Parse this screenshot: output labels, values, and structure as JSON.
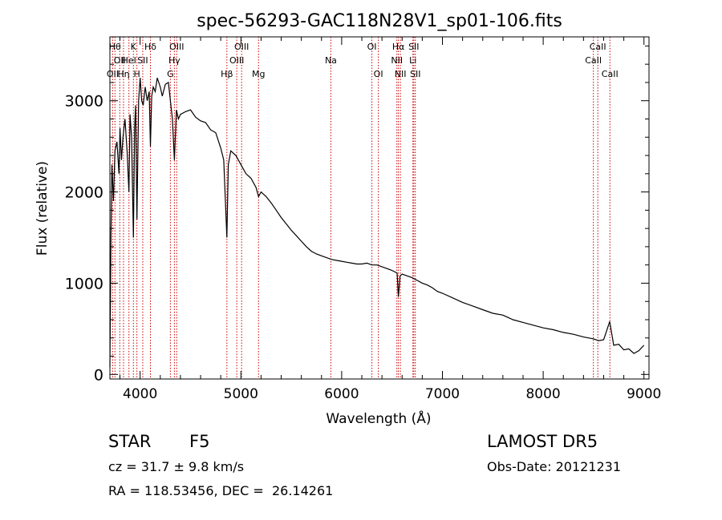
{
  "chart_data": {
    "type": "line",
    "title": "spec-56293-GAC118N28V1_sp01-106.fits",
    "xlabel": "Wavelength (Å)",
    "ylabel": "Flux (relative)",
    "xlim": [
      3700,
      9050
    ],
    "ylim": [
      -50,
      3700
    ],
    "x_ticks": [
      4000,
      5000,
      6000,
      7000,
      8000,
      9000
    ],
    "y_ticks": [
      0,
      1000,
      2000,
      3000
    ],
    "line_color": "#000000",
    "marker_color": "#cc0000",
    "series": [
      {
        "values": [
          [
            3700,
            80
          ],
          [
            3710,
            1500
          ],
          [
            3720,
            2300
          ],
          [
            3735,
            1900
          ],
          [
            3750,
            2450
          ],
          [
            3770,
            2550
          ],
          [
            3790,
            2200
          ],
          [
            3800,
            2700
          ],
          [
            3815,
            2350
          ],
          [
            3830,
            2600
          ],
          [
            3850,
            2800
          ],
          [
            3870,
            2450
          ],
          [
            3889,
            2000
          ],
          [
            3900,
            2850
          ],
          [
            3915,
            2600
          ],
          [
            3933,
            1500
          ],
          [
            3945,
            2700
          ],
          [
            3955,
            2950
          ],
          [
            3968,
            1700
          ],
          [
            3985,
            3000
          ],
          [
            4000,
            3250
          ],
          [
            4015,
            3000
          ],
          [
            4030,
            2950
          ],
          [
            4050,
            3150
          ],
          [
            4070,
            3000
          ],
          [
            4090,
            3100
          ],
          [
            4102,
            2500
          ],
          [
            4115,
            3050
          ],
          [
            4130,
            3150
          ],
          [
            4150,
            3100
          ],
          [
            4170,
            3250
          ],
          [
            4200,
            3150
          ],
          [
            4220,
            3050
          ],
          [
            4250,
            3180
          ],
          [
            4280,
            3200
          ],
          [
            4300,
            3000
          ],
          [
            4320,
            2800
          ],
          [
            4340,
            2350
          ],
          [
            4360,
            2900
          ],
          [
            4380,
            2800
          ],
          [
            4400,
            2850
          ],
          [
            4450,
            2880
          ],
          [
            4500,
            2900
          ],
          [
            4550,
            2820
          ],
          [
            4600,
            2780
          ],
          [
            4650,
            2760
          ],
          [
            4700,
            2680
          ],
          [
            4750,
            2650
          ],
          [
            4800,
            2480
          ],
          [
            4830,
            2350
          ],
          [
            4861,
            1500
          ],
          [
            4875,
            2300
          ],
          [
            4900,
            2450
          ],
          [
            4950,
            2400
          ],
          [
            5000,
            2300
          ],
          [
            5050,
            2200
          ],
          [
            5100,
            2150
          ],
          [
            5150,
            2050
          ],
          [
            5175,
            1950
          ],
          [
            5200,
            2000
          ],
          [
            5250,
            1950
          ],
          [
            5300,
            1880
          ],
          [
            5350,
            1800
          ],
          [
            5400,
            1720
          ],
          [
            5450,
            1650
          ],
          [
            5500,
            1580
          ],
          [
            5550,
            1520
          ],
          [
            5600,
            1460
          ],
          [
            5650,
            1400
          ],
          [
            5700,
            1350
          ],
          [
            5750,
            1320
          ],
          [
            5800,
            1300
          ],
          [
            5850,
            1280
          ],
          [
            5900,
            1260
          ],
          [
            5950,
            1250
          ],
          [
            6000,
            1240
          ],
          [
            6050,
            1230
          ],
          [
            6100,
            1220
          ],
          [
            6150,
            1210
          ],
          [
            6200,
            1210
          ],
          [
            6250,
            1220
          ],
          [
            6300,
            1200
          ],
          [
            6350,
            1200
          ],
          [
            6400,
            1180
          ],
          [
            6450,
            1160
          ],
          [
            6500,
            1140
          ],
          [
            6550,
            1110
          ],
          [
            6563,
            850
          ],
          [
            6580,
            1080
          ],
          [
            6600,
            1100
          ],
          [
            6650,
            1080
          ],
          [
            6700,
            1060
          ],
          [
            6750,
            1030
          ],
          [
            6800,
            1000
          ],
          [
            6850,
            980
          ],
          [
            6900,
            950
          ],
          [
            6950,
            910
          ],
          [
            7000,
            890
          ],
          [
            7100,
            840
          ],
          [
            7200,
            790
          ],
          [
            7300,
            750
          ],
          [
            7400,
            710
          ],
          [
            7500,
            670
          ],
          [
            7600,
            650
          ],
          [
            7700,
            600
          ],
          [
            7800,
            570
          ],
          [
            7900,
            540
          ],
          [
            8000,
            510
          ],
          [
            8100,
            490
          ],
          [
            8200,
            460
          ],
          [
            8300,
            440
          ],
          [
            8400,
            410
          ],
          [
            8500,
            390
          ],
          [
            8550,
            370
          ],
          [
            8600,
            380
          ],
          [
            8660,
            580
          ],
          [
            8700,
            320
          ],
          [
            8750,
            330
          ],
          [
            8800,
            270
          ],
          [
            8850,
            280
          ],
          [
            8900,
            230
          ],
          [
            8950,
            260
          ],
          [
            9000,
            320
          ]
        ]
      }
    ],
    "line_markers": [
      {
        "x": 3727,
        "labels": [
          "OII"
        ],
        "row": 2
      },
      {
        "x": 3750,
        "labels": [
          "Hθ"
        ],
        "row": 0
      },
      {
        "x": 3798,
        "labels": [
          "OII"
        ],
        "row": 1
      },
      {
        "x": 3835,
        "labels": [
          "Hη"
        ],
        "row": 2
      },
      {
        "x": 3889,
        "labels": [
          "HeI"
        ],
        "row": 1
      },
      {
        "x": 3933,
        "labels": [
          "K"
        ],
        "row": 0
      },
      {
        "x": 3968,
        "labels": [
          "H"
        ],
        "row": 2
      },
      {
        "x": 4026,
        "labels": [
          "SII"
        ],
        "row": 1
      },
      {
        "x": 4102,
        "labels": [
          "Hδ"
        ],
        "row": 0
      },
      {
        "x": 4300,
        "labels": [
          "G"
        ],
        "row": 2
      },
      {
        "x": 4340,
        "labels": [
          "Hγ"
        ],
        "row": 1
      },
      {
        "x": 4363,
        "labels": [
          "OIII"
        ],
        "row": 0
      },
      {
        "x": 4861,
        "labels": [
          "Hβ"
        ],
        "row": 2
      },
      {
        "x": 4959,
        "labels": [
          "OIII"
        ],
        "row": 1
      },
      {
        "x": 5007,
        "labels": [
          "OIII"
        ],
        "row": 0
      },
      {
        "x": 5175,
        "labels": [
          "Mg"
        ],
        "row": 2
      },
      {
        "x": 5893,
        "labels": [
          "Na"
        ],
        "row": 1
      },
      {
        "x": 6300,
        "labels": [
          "OI"
        ],
        "row": 0
      },
      {
        "x": 6364,
        "labels": [
          "OI"
        ],
        "row": 2
      },
      {
        "x": 6548,
        "labels": [
          "NII"
        ],
        "row": 1
      },
      {
        "x": 6563,
        "labels": [
          "Hα"
        ],
        "row": 0
      },
      {
        "x": 6583,
        "labels": [
          "NII"
        ],
        "row": 2
      },
      {
        "x": 6707,
        "labels": [
          "Li"
        ],
        "row": 1
      },
      {
        "x": 6716,
        "labels": [
          "SII"
        ],
        "row": 0
      },
      {
        "x": 6731,
        "labels": [
          "SII"
        ],
        "row": 2
      },
      {
        "x": 8498,
        "labels": [
          "CaII"
        ],
        "row": 1
      },
      {
        "x": 8542,
        "labels": [
          "CaII"
        ],
        "row": 0
      },
      {
        "x": 8662,
        "labels": [
          "CaII"
        ],
        "row": 2
      }
    ]
  },
  "info": {
    "class": "STAR",
    "subclass": "F5",
    "survey": "LAMOST DR5",
    "redshift": "cz = 31.7 ± 9.8 km/s",
    "obs_date": "Obs-Date: 20121231",
    "coords": "RA = 118.53456, DEC =  26.14261"
  }
}
